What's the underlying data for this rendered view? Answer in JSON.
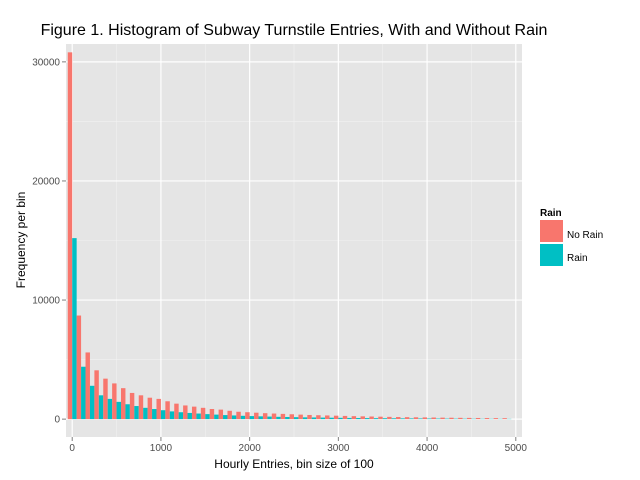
{
  "chart_data": {
    "type": "bar",
    "title": "Figure 1. Histogram of Subway Turnstile Entries, With and Without Rain",
    "xlabel": "Hourly Entries, bin size of 100",
    "ylabel": "Frequency per bin",
    "xlim": [
      -70,
      5070
    ],
    "ylim": [
      -1500,
      31500
    ],
    "x_ticks": [
      0,
      1000,
      2000,
      3000,
      4000,
      5000
    ],
    "y_ticks": [
      0,
      10000,
      20000,
      30000
    ],
    "bin_width": 100,
    "bins": [
      0,
      100,
      200,
      300,
      400,
      500,
      600,
      700,
      800,
      900,
      1000,
      1100,
      1200,
      1300,
      1400,
      1500,
      1600,
      1700,
      1800,
      1900,
      2000,
      2100,
      2200,
      2300,
      2400,
      2500,
      2600,
      2700,
      2800,
      2900,
      3000,
      3100,
      3200,
      3300,
      3400,
      3500,
      3600,
      3700,
      3800,
      3900,
      4000,
      4100,
      4200,
      4300,
      4400,
      4500,
      4600,
      4700,
      4800,
      4900
    ],
    "grid": true,
    "legend": {
      "title": "Rain",
      "position": "right"
    },
    "series": [
      {
        "name": "No Rain",
        "color": "#F8766D",
        "values": [
          30800,
          8700,
          5600,
          4100,
          3400,
          3000,
          2600,
          2200,
          2000,
          1800,
          1700,
          1500,
          1300,
          1150,
          1050,
          950,
          850,
          800,
          700,
          620,
          580,
          540,
          500,
          470,
          440,
          410,
          380,
          350,
          330,
          310,
          290,
          270,
          250,
          235,
          220,
          205,
          190,
          178,
          166,
          155,
          145,
          135,
          125,
          118,
          110,
          103,
          96,
          90,
          84,
          78
        ]
      },
      {
        "name": "Rain",
        "color": "#00BFC4",
        "values": [
          15200,
          4400,
          2800,
          2000,
          1700,
          1450,
          1250,
          1100,
          950,
          850,
          750,
          650,
          580,
          520,
          470,
          420,
          380,
          340,
          310,
          280,
          255,
          235,
          215,
          195,
          180,
          165,
          150,
          140,
          130,
          120,
          110,
          100,
          93,
          86,
          80,
          74,
          68,
          63,
          58,
          54,
          50,
          46,
          42,
          39,
          36,
          33,
          30,
          28,
          26,
          24
        ]
      }
    ]
  }
}
